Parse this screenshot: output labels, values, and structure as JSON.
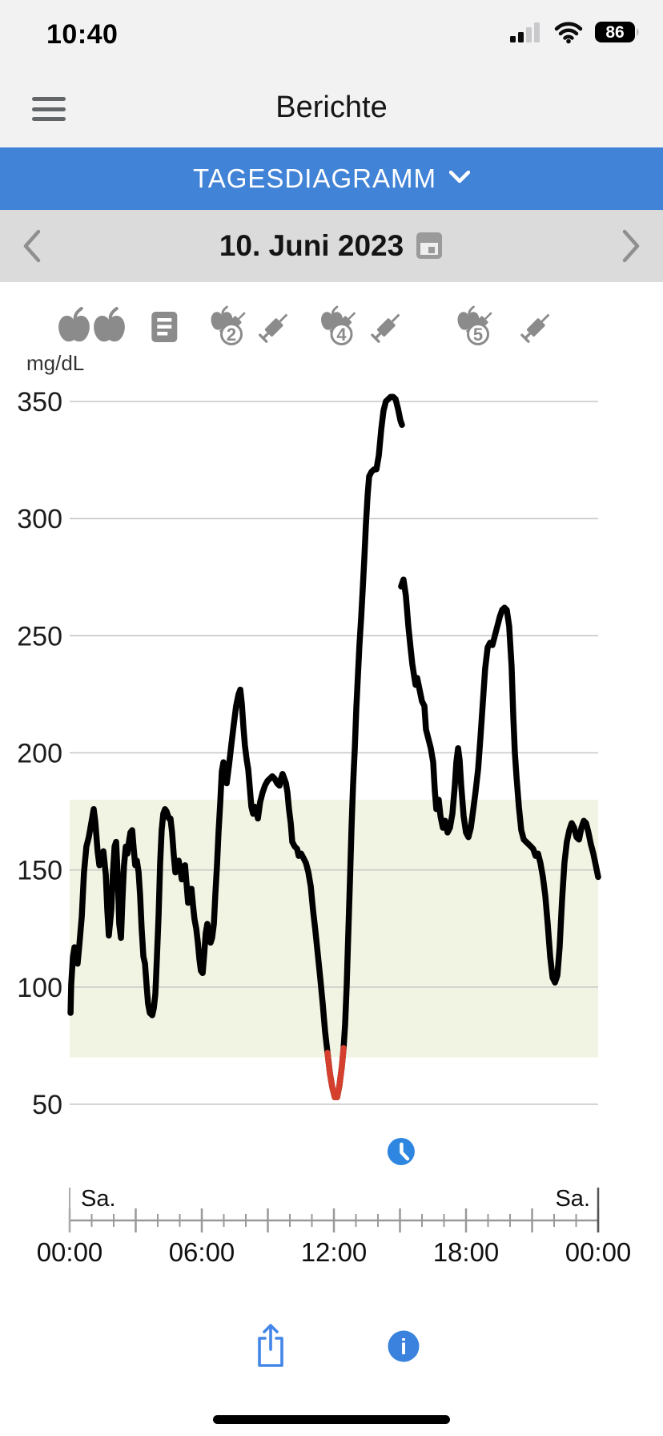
{
  "status_bar": {
    "time": "10:40",
    "battery": "86",
    "signal_bars_filled": 2,
    "signal_bars_total": 4
  },
  "header": {
    "title": "Berichte"
  },
  "view_selector": {
    "label": "TAGESDIAGRAMM"
  },
  "date_nav": {
    "date": "10. Juni 2023"
  },
  "colors": {
    "header_bg": "#f2f2f3",
    "accent_blue": "#4183d7",
    "bar_bg": "#dbdbdb",
    "icon_gray": "#8b8b8b",
    "icon_blue": "#2e86e0",
    "share_blue": "#4386e8",
    "low_red": "#d5402e",
    "target_fill": "#f1f4e2",
    "grid": "#c6c6c6",
    "axis_text": "#1c1c1c",
    "ruler": "#999999",
    "line": "#000000"
  },
  "event_markers": [
    {
      "icon": "apple",
      "hour": 0.2
    },
    {
      "icon": "apple",
      "hour": 1.8
    },
    {
      "icon": "note",
      "hour": 4.3
    },
    {
      "icon": "meal-bolus",
      "badge": "2",
      "hour": 7.2
    },
    {
      "icon": "syringe",
      "hour": 9.3
    },
    {
      "icon": "meal-bolus",
      "badge": "4",
      "hour": 12.2
    },
    {
      "icon": "syringe",
      "hour": 14.4
    },
    {
      "icon": "meal-bolus",
      "badge": "5",
      "hour": 18.4
    },
    {
      "icon": "syringe",
      "hour": 21.2
    }
  ],
  "chart_data": {
    "type": "line",
    "unit_label": "mg/dL",
    "y_ticks": [
      350,
      300,
      250,
      200,
      150,
      100,
      50
    ],
    "y_range": [
      50,
      350
    ],
    "x_range_hours": [
      0,
      24
    ],
    "x_tick_hours": [
      0,
      6,
      12,
      18,
      24
    ],
    "x_tick_labels": [
      "00:00",
      "06:00",
      "12:00",
      "18:00",
      "00:00"
    ],
    "major_tick_every_hours": 3,
    "minor_tick_every_hours": 1,
    "day_label_left": "Sa.",
    "day_label_right": "Sa.",
    "target_range": {
      "low": 70,
      "high": 180
    },
    "low_threshold": 70,
    "current_time_marker_hour": 15.05,
    "segments": [
      [
        [
          0.04,
          89
        ],
        [
          0.07,
          101
        ],
        [
          0.15,
          113
        ],
        [
          0.22,
          117
        ],
        [
          0.29,
          111
        ],
        [
          0.36,
          110
        ],
        [
          0.44,
          118
        ],
        [
          0.55,
          130
        ],
        [
          0.65,
          149
        ],
        [
          0.76,
          160
        ],
        [
          0.87,
          164
        ],
        [
          0.98,
          170
        ],
        [
          1.09,
          176
        ],
        [
          1.16,
          171
        ],
        [
          1.27,
          158
        ],
        [
          1.35,
          152
        ],
        [
          1.45,
          156
        ],
        [
          1.53,
          158
        ],
        [
          1.64,
          148
        ],
        [
          1.71,
          133
        ],
        [
          1.78,
          122
        ],
        [
          1.89,
          133
        ],
        [
          1.96,
          148
        ],
        [
          2.04,
          160
        ],
        [
          2.11,
          162
        ],
        [
          2.18,
          148
        ],
        [
          2.25,
          127
        ],
        [
          2.33,
          121
        ],
        [
          2.4,
          138
        ],
        [
          2.47,
          152
        ],
        [
          2.55,
          160
        ],
        [
          2.62,
          157
        ],
        [
          2.69,
          162
        ],
        [
          2.76,
          166
        ],
        [
          2.84,
          167
        ],
        [
          2.91,
          159
        ],
        [
          2.98,
          152
        ],
        [
          3.05,
          154
        ],
        [
          3.13,
          149
        ],
        [
          3.2,
          139
        ],
        [
          3.27,
          125
        ],
        [
          3.35,
          113
        ],
        [
          3.42,
          110
        ],
        [
          3.49,
          101
        ],
        [
          3.56,
          93
        ],
        [
          3.64,
          89
        ],
        [
          3.75,
          88
        ],
        [
          3.82,
          91
        ],
        [
          3.89,
          97
        ],
        [
          3.96,
          112
        ],
        [
          4.04,
          131
        ],
        [
          4.11,
          153
        ],
        [
          4.18,
          167
        ],
        [
          4.25,
          174
        ],
        [
          4.33,
          176
        ],
        [
          4.4,
          175
        ],
        [
          4.51,
          172
        ],
        [
          4.58,
          172
        ],
        [
          4.65,
          166
        ],
        [
          4.73,
          156
        ],
        [
          4.8,
          149
        ],
        [
          4.87,
          151
        ],
        [
          4.95,
          154
        ],
        [
          5.02,
          151
        ],
        [
          5.09,
          146
        ],
        [
          5.16,
          150
        ],
        [
          5.24,
          152
        ],
        [
          5.31,
          144
        ],
        [
          5.38,
          136
        ],
        [
          5.45,
          139
        ],
        [
          5.53,
          142
        ],
        [
          5.6,
          135
        ],
        [
          5.67,
          129
        ],
        [
          5.75,
          125
        ],
        [
          5.82,
          119
        ],
        [
          5.89,
          112
        ],
        [
          5.96,
          107
        ],
        [
          6.04,
          106
        ],
        [
          6.11,
          114
        ],
        [
          6.18,
          123
        ],
        [
          6.25,
          127
        ],
        [
          6.33,
          122
        ],
        [
          6.4,
          119
        ],
        [
          6.47,
          121
        ],
        [
          6.55,
          127
        ],
        [
          6.62,
          140
        ],
        [
          6.69,
          152
        ],
        [
          6.76,
          166
        ],
        [
          6.84,
          179
        ],
        [
          6.91,
          192
        ],
        [
          6.98,
          196
        ],
        [
          7.05,
          191
        ],
        [
          7.13,
          187
        ],
        [
          7.24,
          195
        ],
        [
          7.35,
          204
        ],
        [
          7.45,
          212
        ],
        [
          7.56,
          220
        ],
        [
          7.67,
          225
        ],
        [
          7.75,
          227
        ],
        [
          7.82,
          221
        ],
        [
          7.89,
          211
        ],
        [
          7.96,
          203
        ],
        [
          8.04,
          197
        ],
        [
          8.11,
          193
        ],
        [
          8.18,
          185
        ],
        [
          8.25,
          177
        ],
        [
          8.33,
          174
        ],
        [
          8.4,
          177
        ],
        [
          8.47,
          176
        ],
        [
          8.55,
          172
        ],
        [
          8.65,
          179
        ],
        [
          8.76,
          183
        ],
        [
          8.87,
          186
        ],
        [
          8.98,
          188
        ],
        [
          9.09,
          189
        ],
        [
          9.2,
          190
        ],
        [
          9.31,
          189
        ],
        [
          9.42,
          187
        ],
        [
          9.53,
          186
        ],
        [
          9.6,
          189
        ],
        [
          9.67,
          191
        ],
        [
          9.75,
          189
        ],
        [
          9.82,
          187
        ],
        [
          9.89,
          183
        ],
        [
          9.96,
          176
        ],
        [
          10.04,
          170
        ],
        [
          10.11,
          162
        ],
        [
          10.22,
          160
        ],
        [
          10.33,
          159
        ],
        [
          10.4,
          156
        ],
        [
          10.51,
          157
        ],
        [
          10.62,
          155
        ],
        [
          10.73,
          153
        ],
        [
          10.84,
          149
        ],
        [
          10.95,
          143
        ],
        [
          11.05,
          133
        ],
        [
          11.16,
          124
        ],
        [
          11.27,
          114
        ],
        [
          11.38,
          104
        ],
        [
          11.49,
          93
        ],
        [
          11.6,
          81
        ],
        [
          11.71,
          72
        ],
        [
          11.82,
          63
        ],
        [
          11.93,
          57
        ],
        [
          12.04,
          53
        ],
        [
          12.15,
          53
        ],
        [
          12.25,
          58
        ],
        [
          12.36,
          66
        ],
        [
          12.44,
          74
        ],
        [
          12.51,
          84
        ],
        [
          12.58,
          100
        ],
        [
          12.65,
          122
        ],
        [
          12.73,
          146
        ],
        [
          12.8,
          168
        ],
        [
          12.87,
          186
        ],
        [
          12.95,
          202
        ],
        [
          13.02,
          219
        ],
        [
          13.09,
          233
        ],
        [
          13.16,
          246
        ],
        [
          13.24,
          258
        ],
        [
          13.31,
          270
        ],
        [
          13.38,
          283
        ],
        [
          13.45,
          297
        ],
        [
          13.53,
          310
        ],
        [
          13.6,
          318
        ],
        [
          13.71,
          320
        ],
        [
          13.82,
          321
        ],
        [
          13.93,
          321
        ],
        [
          14.04,
          327
        ],
        [
          14.15,
          338
        ],
        [
          14.25,
          346
        ],
        [
          14.36,
          350
        ],
        [
          14.47,
          351
        ],
        [
          14.58,
          352
        ],
        [
          14.69,
          352
        ],
        [
          14.8,
          351
        ],
        [
          14.91,
          347
        ],
        [
          15.02,
          342
        ],
        [
          15.09,
          340
        ]
      ],
      [
        [
          15.05,
          271
        ],
        [
          15.16,
          274
        ],
        [
          15.27,
          267
        ],
        [
          15.38,
          254
        ],
        [
          15.49,
          244
        ],
        [
          15.56,
          238
        ],
        [
          15.64,
          233
        ],
        [
          15.71,
          229
        ],
        [
          15.78,
          232
        ],
        [
          15.89,
          227
        ],
        [
          16.0,
          222
        ],
        [
          16.11,
          220
        ],
        [
          16.18,
          210
        ],
        [
          16.29,
          206
        ],
        [
          16.4,
          202
        ],
        [
          16.51,
          196
        ],
        [
          16.58,
          184
        ],
        [
          16.65,
          176
        ],
        [
          16.76,
          180
        ],
        [
          16.84,
          173
        ],
        [
          16.95,
          168
        ],
        [
          17.05,
          171
        ],
        [
          17.16,
          166
        ],
        [
          17.27,
          168
        ],
        [
          17.38,
          174
        ],
        [
          17.49,
          186
        ],
        [
          17.56,
          196
        ],
        [
          17.64,
          202
        ],
        [
          17.71,
          197
        ],
        [
          17.78,
          186
        ],
        [
          17.89,
          173
        ],
        [
          18.0,
          166
        ],
        [
          18.11,
          164
        ],
        [
          18.22,
          168
        ],
        [
          18.33,
          176
        ],
        [
          18.44,
          184
        ],
        [
          18.55,
          193
        ],
        [
          18.65,
          206
        ],
        [
          18.76,
          221
        ],
        [
          18.87,
          236
        ],
        [
          18.98,
          245
        ],
        [
          19.09,
          247
        ],
        [
          19.2,
          246
        ],
        [
          19.31,
          250
        ],
        [
          19.42,
          254
        ],
        [
          19.53,
          258
        ],
        [
          19.64,
          261
        ],
        [
          19.75,
          262
        ],
        [
          19.85,
          261
        ],
        [
          19.96,
          254
        ],
        [
          20.07,
          237
        ],
        [
          20.15,
          215
        ],
        [
          20.22,
          200
        ],
        [
          20.29,
          190
        ],
        [
          20.4,
          177
        ],
        [
          20.51,
          167
        ],
        [
          20.62,
          163
        ],
        [
          20.73,
          162
        ],
        [
          20.84,
          161
        ],
        [
          20.95,
          160
        ],
        [
          21.05,
          159
        ],
        [
          21.16,
          156
        ],
        [
          21.27,
          157
        ],
        [
          21.38,
          153
        ],
        [
          21.49,
          147
        ],
        [
          21.6,
          139
        ],
        [
          21.71,
          127
        ],
        [
          21.82,
          113
        ],
        [
          21.93,
          104
        ],
        [
          22.04,
          102
        ],
        [
          22.15,
          105
        ],
        [
          22.25,
          117
        ],
        [
          22.36,
          137
        ],
        [
          22.47,
          153
        ],
        [
          22.58,
          162
        ],
        [
          22.69,
          167
        ],
        [
          22.8,
          170
        ],
        [
          22.91,
          168
        ],
        [
          23.02,
          164
        ],
        [
          23.13,
          163
        ],
        [
          23.24,
          168
        ],
        [
          23.35,
          171
        ],
        [
          23.45,
          170
        ],
        [
          23.56,
          166
        ],
        [
          23.67,
          161
        ],
        [
          23.78,
          157
        ],
        [
          23.89,
          152
        ],
        [
          24.0,
          147
        ]
      ]
    ],
    "low_segment": [
      [
        11.71,
        72
      ],
      [
        11.82,
        63
      ],
      [
        11.93,
        57
      ],
      [
        12.04,
        53
      ],
      [
        12.15,
        53
      ],
      [
        12.25,
        58
      ],
      [
        12.36,
        66
      ],
      [
        12.44,
        74
      ]
    ]
  }
}
